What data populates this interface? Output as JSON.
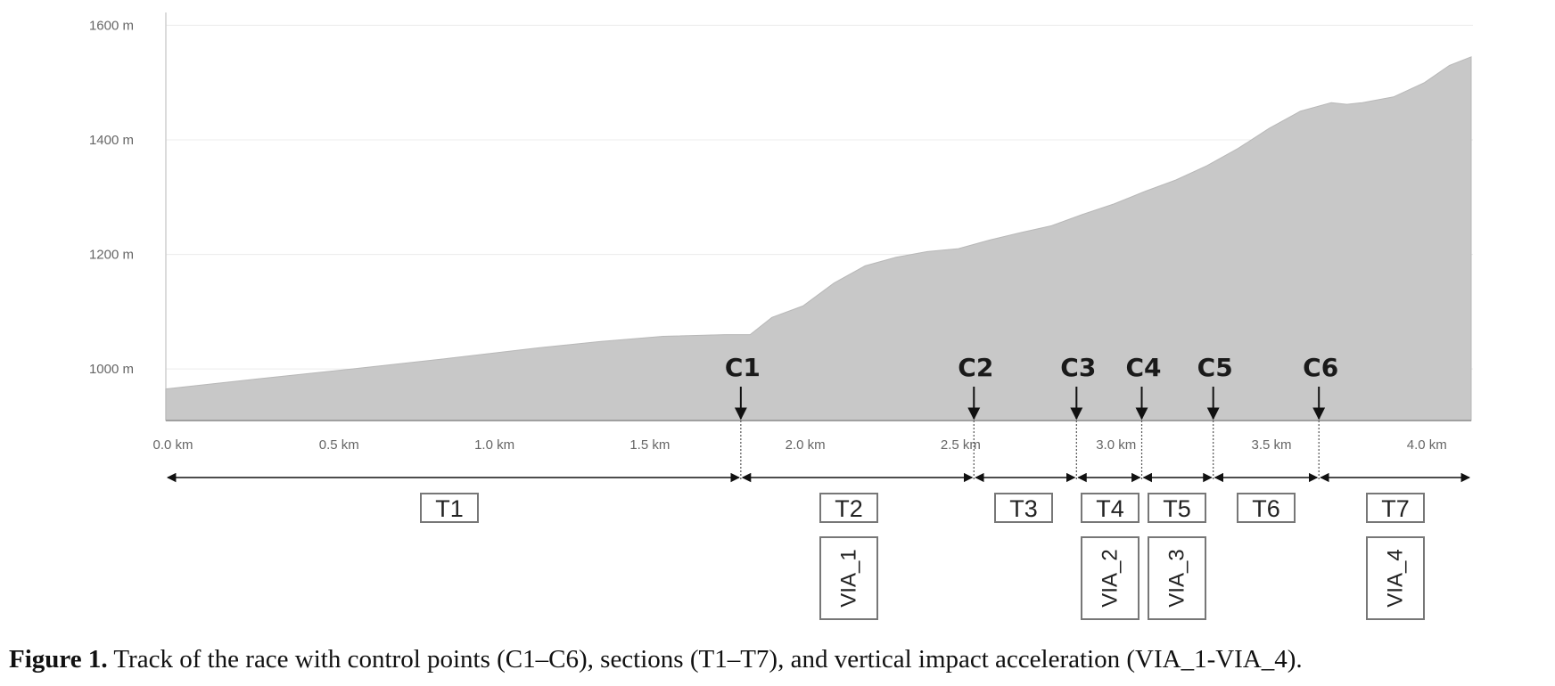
{
  "chart_data": {
    "type": "area",
    "x_unit": "km",
    "y_unit": "m",
    "xlim": [
      0.0,
      4.2
    ],
    "ylim": [
      910,
      1610
    ],
    "x_ticks": [
      "0.0 km",
      "0.5 km",
      "1.0 km",
      "1.5 km",
      "2.0 km",
      "2.5 km",
      "3.0 km",
      "3.5 km",
      "4.0 km"
    ],
    "y_ticks": [
      "1600 m",
      "1400 m",
      "1200 m",
      "1000 m"
    ],
    "fill_color": "#c8c8c8",
    "grid": "horizontal",
    "x": [
      0.0,
      0.3,
      0.6,
      0.9,
      1.2,
      1.4,
      1.6,
      1.8,
      1.88,
      1.95,
      2.05,
      2.15,
      2.25,
      2.35,
      2.45,
      2.55,
      2.65,
      2.75,
      2.85,
      2.95,
      3.05,
      3.15,
      3.25,
      3.35,
      3.45,
      3.55,
      3.65,
      3.75,
      3.8,
      3.85,
      3.95,
      4.05,
      4.13,
      4.2
    ],
    "y": [
      965,
      983,
      1000,
      1018,
      1037,
      1048,
      1057,
      1060,
      1060,
      1090,
      1110,
      1150,
      1180,
      1195,
      1205,
      1210,
      1225,
      1238,
      1250,
      1270,
      1288,
      1310,
      1330,
      1355,
      1385,
      1420,
      1450,
      1465,
      1462,
      1465,
      1475,
      1500,
      1530,
      1545
    ],
    "control_points": [
      {
        "label": "C1",
        "x": 1.85
      },
      {
        "label": "C2",
        "x": 2.6
      },
      {
        "label": "C3",
        "x": 2.93
      },
      {
        "label": "C4",
        "x": 3.14
      },
      {
        "label": "C5",
        "x": 3.37
      },
      {
        "label": "C6",
        "x": 3.71
      }
    ],
    "sections": [
      {
        "label": "T1",
        "from": 0.0,
        "to": 1.85
      },
      {
        "label": "T2",
        "from": 1.85,
        "to": 2.6
      },
      {
        "label": "T3",
        "from": 2.6,
        "to": 2.93
      },
      {
        "label": "T4",
        "from": 2.93,
        "to": 3.14
      },
      {
        "label": "T5",
        "from": 3.14,
        "to": 3.37
      },
      {
        "label": "T6",
        "from": 3.37,
        "to": 3.71
      },
      {
        "label": "T7",
        "from": 3.71,
        "to": 4.2
      }
    ],
    "via": [
      {
        "label": "VIA_1",
        "section": "T2"
      },
      {
        "label": "VIA_2",
        "section": "T4"
      },
      {
        "label": "VIA_3",
        "section": "T5"
      },
      {
        "label": "VIA_4",
        "section": "T7"
      }
    ]
  },
  "caption": {
    "bold": "Figure 1.",
    "text": " Track of the race with control points (C1–C6), sections (T1–T7), and vertical impact acceleration (VIA_1-VIA_4)."
  }
}
